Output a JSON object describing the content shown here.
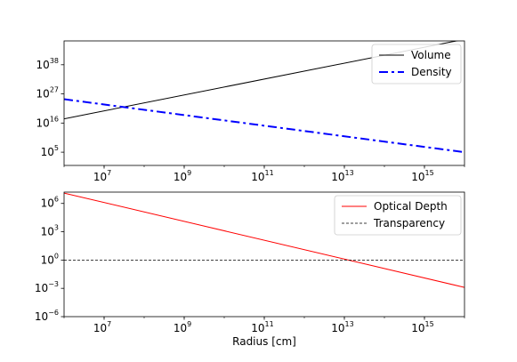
{
  "chart_data": [
    {
      "type": "line",
      "title": "",
      "xlabel": "",
      "ylabel": "",
      "xscale": "log",
      "yscale": "log",
      "xlim": [
        1000000,
        10000000000000000
      ],
      "ylim_exp": [
        0,
        47
      ],
      "xticks": [
        {
          "base": "10",
          "exp": "7",
          "value": 10000000
        },
        {
          "base": "10",
          "exp": "9",
          "value": 1000000000
        },
        {
          "base": "10",
          "exp": "11",
          "value": 100000000000
        },
        {
          "base": "10",
          "exp": "13",
          "value": 10000000000000
        },
        {
          "base": "10",
          "exp": "15",
          "value": 1000000000000000
        }
      ],
      "yticks": [
        {
          "base": "10",
          "exp": "5",
          "value_exp": 5
        },
        {
          "base": "10",
          "exp": "16",
          "value_exp": 16
        },
        {
          "base": "10",
          "exp": "27",
          "value_exp": 27
        },
        {
          "base": "10",
          "exp": "38",
          "value_exp": 38
        }
      ],
      "legend_position": "top-right",
      "grid": false,
      "series": [
        {
          "name": "Volume",
          "color": "#000000",
          "style": "solid",
          "x_exp": [
            6,
            16
          ],
          "y_exp": [
            17.6,
            47.6
          ]
        },
        {
          "name": "Density",
          "color": "#0000ff",
          "style": "dashdot",
          "x_exp": [
            6,
            16
          ],
          "y_exp": [
            25,
            5
          ]
        }
      ]
    },
    {
      "type": "line",
      "title": "",
      "xlabel": "Radius [cm]",
      "ylabel": "",
      "xscale": "log",
      "yscale": "log",
      "xlim": [
        1000000,
        10000000000000000
      ],
      "ylim_exp": [
        -6,
        7.2
      ],
      "xticks": [
        {
          "base": "10",
          "exp": "7",
          "value": 10000000
        },
        {
          "base": "10",
          "exp": "9",
          "value": 1000000000
        },
        {
          "base": "10",
          "exp": "11",
          "value": 100000000000
        },
        {
          "base": "10",
          "exp": "13",
          "value": 10000000000000
        },
        {
          "base": "10",
          "exp": "15",
          "value": 1000000000000000
        }
      ],
      "yticks": [
        {
          "base": "10",
          "exp": "−6",
          "value_exp": -6
        },
        {
          "base": "10",
          "exp": "−3",
          "value_exp": -3
        },
        {
          "base": "10",
          "exp": "0",
          "value_exp": 0
        },
        {
          "base": "10",
          "exp": "3",
          "value_exp": 3
        },
        {
          "base": "10",
          "exp": "6",
          "value_exp": 6
        }
      ],
      "legend_position": "top-right",
      "grid": false,
      "series": [
        {
          "name": "Optical Depth",
          "color": "#ff0000",
          "style": "solid",
          "x_exp": [
            6,
            16
          ],
          "y_exp": [
            7.1,
            -2.9
          ]
        },
        {
          "name": "Transparency",
          "color": "#000000",
          "style": "dashed",
          "x_exp": [
            6,
            16
          ],
          "y_exp": [
            0,
            0
          ]
        }
      ]
    }
  ]
}
